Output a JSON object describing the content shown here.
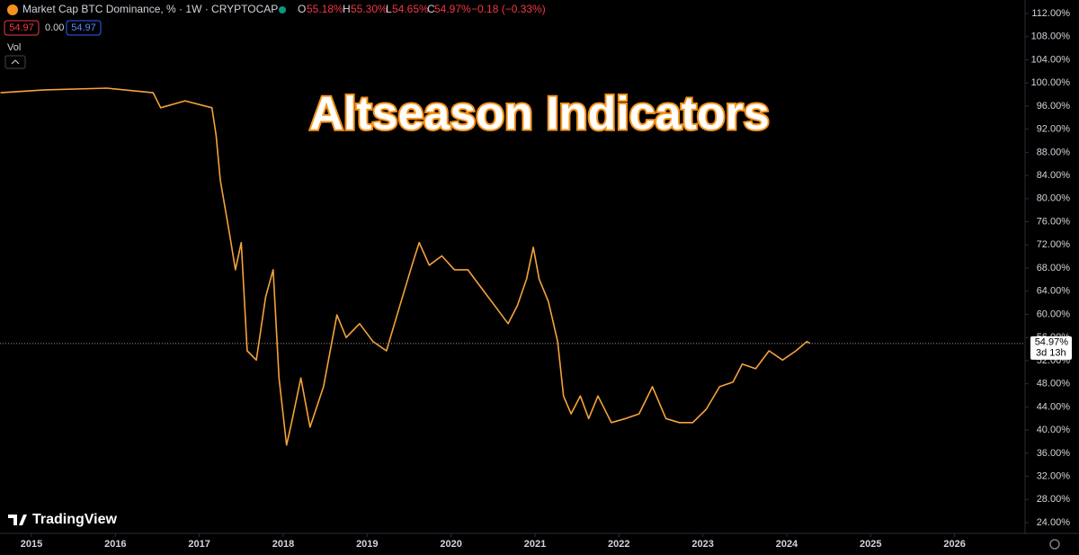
{
  "chart_data": {
    "type": "line",
    "title": "Altseason Indicators",
    "header": {
      "symbol": "Market Cap BTC Dominance, % · 1W · CRYPTOCAP",
      "open_label": "O",
      "open": "55.18%",
      "high_label": "H",
      "high": "55.30%",
      "low_label": "L",
      "low": "54.65%",
      "close_label": "C",
      "close": "54.97%",
      "change": "−0.18 (−0.33%)",
      "box_left": "54.97",
      "box_mid": "0.00",
      "box_right": "54.97",
      "volume": "Vol"
    },
    "watermark": "TradingView",
    "last_price": 54.97,
    "last_price_label": "54.97%",
    "countdown": "3d 13h",
    "grid": false,
    "series": [
      {
        "name": "Market Cap BTC Dominance",
        "color": "#f5a33b",
        "x": [
          2014.63,
          2015.16,
          2015.9,
          2016.45,
          2016.54,
          2016.83,
          2017.15,
          2017.2,
          2017.25,
          2017.36,
          2017.43,
          2017.5,
          2017.57,
          2017.68,
          2017.79,
          2017.88,
          2017.95,
          2018.04,
          2018.1,
          2018.21,
          2018.32,
          2018.48,
          2018.64,
          2018.75,
          2018.91,
          2019.07,
          2019.23,
          2019.39,
          2019.55,
          2019.62,
          2019.74,
          2019.89,
          2020.04,
          2020.2,
          2020.36,
          2020.52,
          2020.68,
          2020.79,
          2020.9,
          2020.98,
          2021.05,
          2021.16,
          2021.27,
          2021.34,
          2021.43,
          2021.54,
          2021.64,
          2021.75,
          2021.91,
          2022.08,
          2022.24,
          2022.4,
          2022.56,
          2022.72,
          2022.88,
          2023.04,
          2023.2,
          2023.36,
          2023.47,
          2023.63,
          2023.79,
          2023.95,
          2024.11,
          2024.24,
          2024.28
        ],
        "values": [
          98.3,
          98.8,
          99.1,
          98.3,
          95.7,
          96.9,
          95.7,
          91,
          83.2,
          73.9,
          67.7,
          72.4,
          53.7,
          52.1,
          63,
          67.7,
          49,
          37.4,
          41.3,
          49,
          40.5,
          47.5,
          59.9,
          56,
          58.4,
          55.3,
          53.7,
          61.5,
          69.2,
          72.4,
          68.5,
          70.1,
          67.7,
          67.7,
          64.6,
          61.5,
          58.4,
          61.5,
          66.1,
          71.6,
          66.1,
          62.2,
          55.3,
          45.9,
          42.8,
          45.9,
          42,
          45.9,
          41.3,
          42,
          42.8,
          47.5,
          42,
          41.3,
          41.3,
          43.6,
          47.5,
          48.3,
          51.4,
          50.6,
          53.7,
          52.1,
          53.7,
          55.3,
          54.97
        ]
      }
    ],
    "xlim": [
      2014.625,
      2026.84
    ],
    "xticks": [
      2015,
      2016,
      2017,
      2018,
      2019,
      2020,
      2021,
      2022,
      2023,
      2024,
      2025,
      2026
    ],
    "ylim": [
      22.14,
      114.33
    ],
    "yticks": [
      {
        "value": 24,
        "label": "24.00%"
      },
      {
        "value": 28,
        "label": "28.00%"
      },
      {
        "value": 32,
        "label": "32.00%"
      },
      {
        "value": 36,
        "label": "36.00%"
      },
      {
        "value": 40,
        "label": "40.00%"
      },
      {
        "value": 44,
        "label": "44.00%"
      },
      {
        "value": 48,
        "label": "48.00%"
      },
      {
        "value": 52,
        "label": "52.00%"
      },
      {
        "value": 56,
        "label": "56.00%"
      },
      {
        "value": 60,
        "label": "60.00%"
      },
      {
        "value": 64,
        "label": "64.00%"
      },
      {
        "value": 68,
        "label": "68.00%"
      },
      {
        "value": 72,
        "label": "72.00%"
      },
      {
        "value": 76,
        "label": "76.00%"
      },
      {
        "value": 80,
        "label": "80.00%"
      },
      {
        "value": 84,
        "label": "84.00%"
      },
      {
        "value": 88,
        "label": "88.00%"
      },
      {
        "value": 92,
        "label": "92.00%"
      },
      {
        "value": 96,
        "label": "96.00%"
      },
      {
        "value": 100,
        "label": "100.00%"
      },
      {
        "value": 104,
        "label": "104.00%"
      },
      {
        "value": 108,
        "label": "108.00%"
      },
      {
        "value": 112,
        "label": "112.00%"
      }
    ]
  }
}
